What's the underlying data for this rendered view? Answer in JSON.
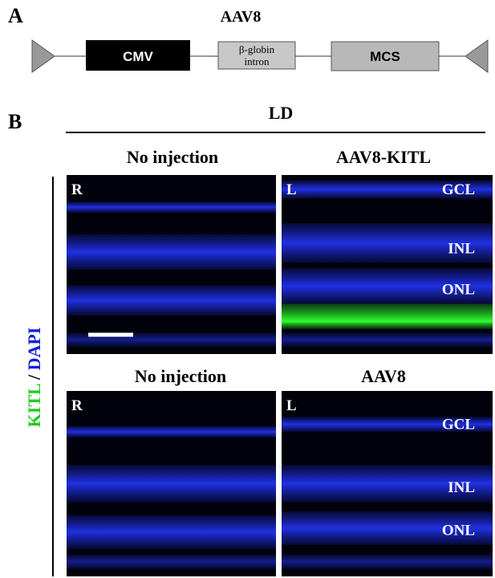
{
  "panel_a": {
    "label": "A",
    "title": "AAV8",
    "cmv": "CMV",
    "intron": [
      "β-globin",
      "intron"
    ],
    "mcs": "MCS"
  },
  "panel_b": {
    "label": "B",
    "condition": "LD",
    "side_label": {
      "kitl": "KITL",
      "slash": "/",
      "dapi": "DAPI"
    },
    "panels": [
      {
        "header": "No injection",
        "eye": "R"
      },
      {
        "header": "AAV8-KITL",
        "eye": "L",
        "layers": [
          "GCL",
          "INL",
          "ONL"
        ]
      },
      {
        "header": "No injection",
        "eye": "R"
      },
      {
        "header": "AAV8",
        "eye": "L",
        "layers": [
          "GCL",
          "INL",
          "ONL"
        ]
      }
    ]
  }
}
